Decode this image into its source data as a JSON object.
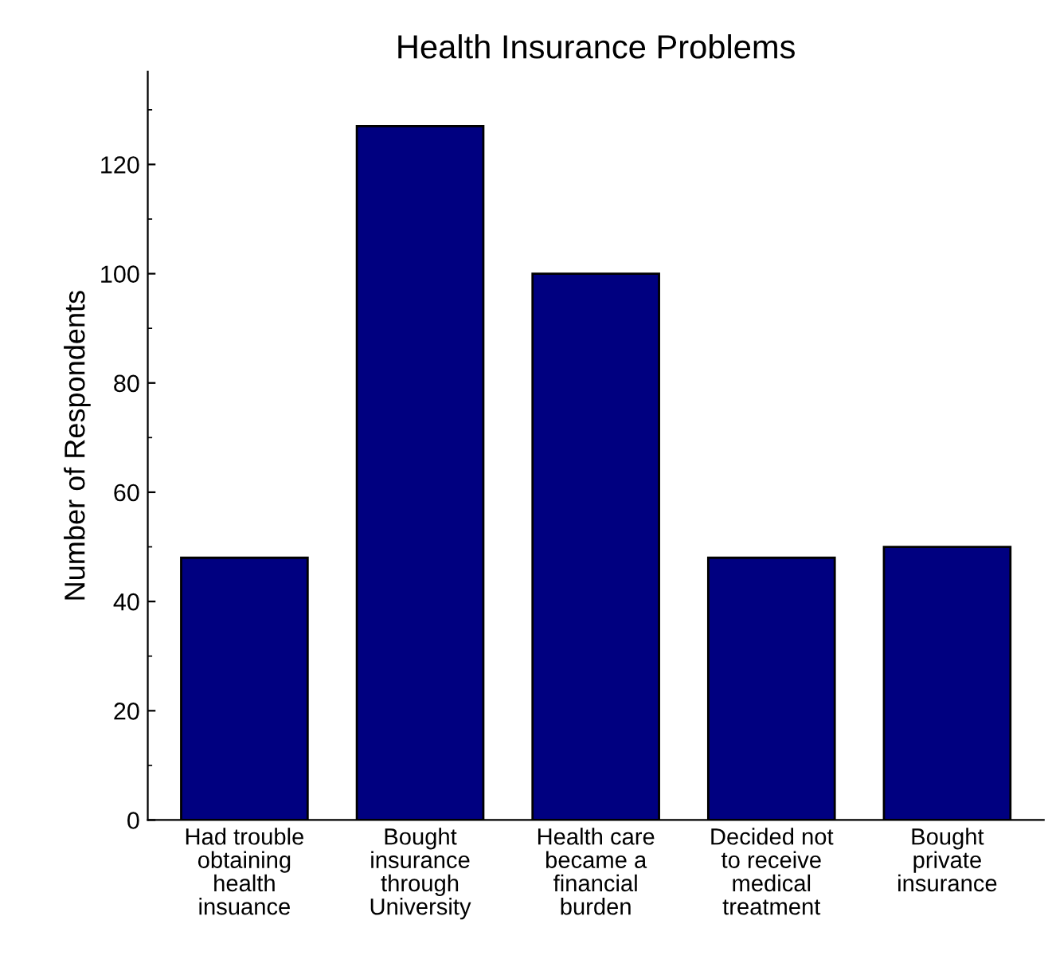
{
  "chart_data": {
    "type": "bar",
    "title": "Health Insurance Problems",
    "ylabel": "Number of Respondents",
    "categories": [
      "Had trouble\nobtaining\nhealth\ninsuance",
      "Bought\ninsurance\nthrough\nUniversity",
      "Health care\nbecame a\nfinancial\nburden",
      "Decided not\nto receive\nmedical\ntreatment",
      "Bought\nprivate\ninsurance"
    ],
    "values": [
      48,
      127,
      100,
      48,
      50
    ],
    "color": "#000080",
    "ylim": [
      0,
      137
    ],
    "yticks": [
      0,
      20,
      40,
      60,
      80,
      100,
      120
    ],
    "grid": false
  }
}
